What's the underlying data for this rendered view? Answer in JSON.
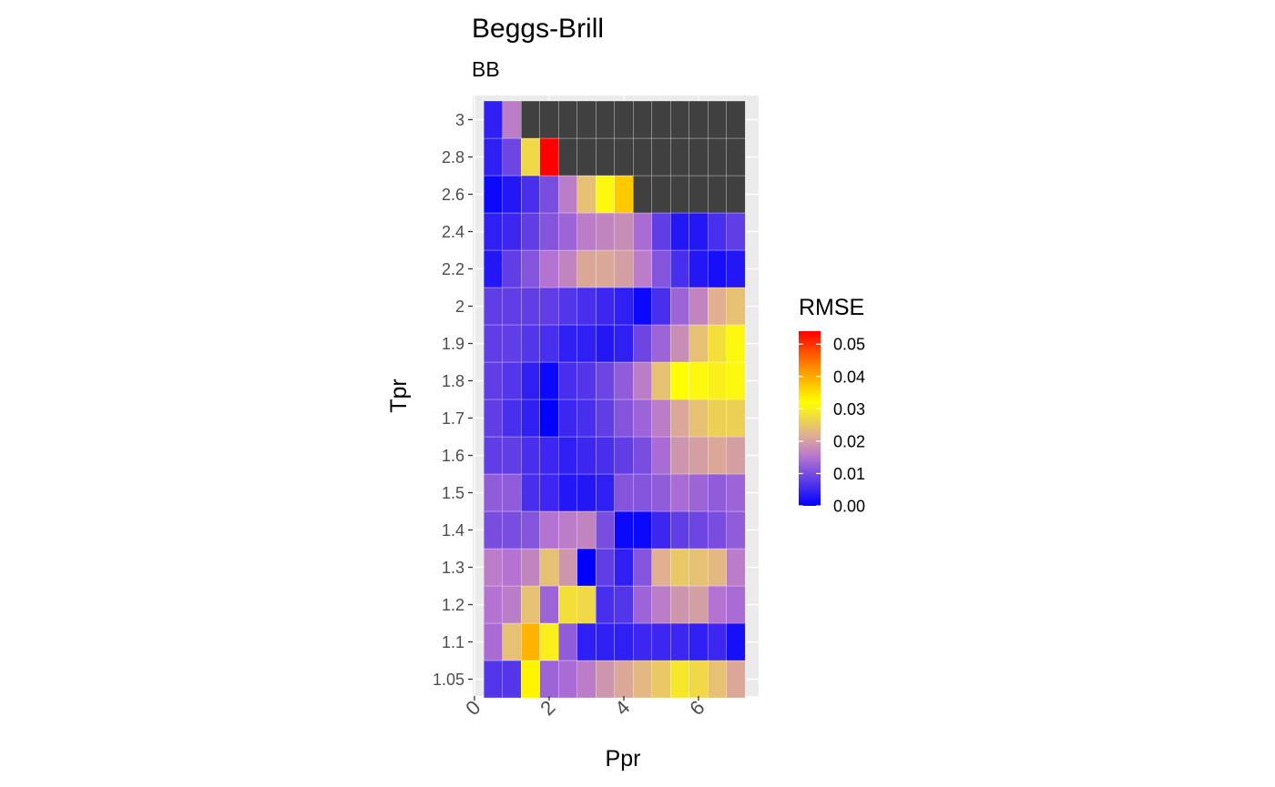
{
  "chart_data": {
    "type": "heatmap",
    "title": "Beggs-Brill",
    "subtitle": "BB",
    "xlabel": "Ppr",
    "ylabel": "Tpr",
    "x_ticks": [
      0,
      2,
      4,
      6
    ],
    "x": [
      0.5,
      1.0,
      1.5,
      2.0,
      2.5,
      3.0,
      3.5,
      4.0,
      4.5,
      5.0,
      5.5,
      6.0,
      6.5,
      7.0
    ],
    "y_categories": [
      "1.05",
      "1.1",
      "1.2",
      "1.3",
      "1.4",
      "1.5",
      "1.6",
      "1.7",
      "1.8",
      "1.9",
      "2",
      "2.2",
      "2.4",
      "2.6",
      "2.8",
      "3"
    ],
    "z": [
      [
        0.007,
        0.007,
        0.033,
        0.013,
        0.014,
        0.016,
        0.019,
        0.021,
        0.023,
        0.025,
        0.029,
        0.027,
        0.024,
        0.021
      ],
      [
        0.014,
        0.024,
        0.039,
        0.03,
        0.012,
        0.004,
        0.004,
        0.004,
        0.005,
        0.005,
        0.005,
        0.004,
        0.005,
        0.002
      ],
      [
        0.015,
        0.016,
        0.024,
        0.013,
        0.028,
        0.027,
        0.006,
        0.007,
        0.013,
        0.016,
        0.019,
        0.02,
        0.015,
        0.014
      ],
      [
        0.016,
        0.015,
        0.017,
        0.024,
        0.019,
        0.0,
        0.008,
        0.004,
        0.011,
        0.022,
        0.025,
        0.024,
        0.023,
        0.016
      ],
      [
        0.01,
        0.01,
        0.011,
        0.015,
        0.016,
        0.017,
        0.01,
        0.001,
        0.001,
        0.005,
        0.008,
        0.009,
        0.01,
        0.012
      ],
      [
        0.012,
        0.012,
        0.006,
        0.005,
        0.003,
        0.003,
        0.004,
        0.011,
        0.011,
        0.012,
        0.014,
        0.013,
        0.012,
        0.013
      ],
      [
        0.008,
        0.008,
        0.006,
        0.005,
        0.004,
        0.005,
        0.006,
        0.008,
        0.01,
        0.014,
        0.019,
        0.02,
        0.021,
        0.02
      ],
      [
        0.008,
        0.006,
        0.004,
        0.0,
        0.005,
        0.006,
        0.008,
        0.011,
        0.013,
        0.016,
        0.021,
        0.024,
        0.026,
        0.026
      ],
      [
        0.008,
        0.007,
        0.004,
        0.001,
        0.006,
        0.007,
        0.009,
        0.012,
        0.016,
        0.024,
        0.032,
        0.031,
        0.03,
        0.031
      ],
      [
        0.008,
        0.008,
        0.007,
        0.006,
        0.004,
        0.004,
        0.003,
        0.004,
        0.009,
        0.013,
        0.018,
        0.024,
        0.028,
        0.031
      ],
      [
        0.008,
        0.008,
        0.008,
        0.008,
        0.007,
        0.006,
        0.005,
        0.004,
        0.001,
        0.006,
        0.013,
        0.017,
        0.022,
        0.024
      ],
      [
        0.003,
        0.008,
        0.011,
        0.015,
        0.017,
        0.021,
        0.021,
        0.02,
        0.016,
        0.011,
        0.006,
        0.003,
        0.002,
        0.003
      ],
      [
        0.004,
        0.005,
        0.008,
        0.011,
        0.013,
        0.016,
        0.017,
        0.018,
        0.014,
        0.008,
        0.003,
        0.003,
        0.006,
        0.008
      ],
      [
        0.001,
        0.003,
        0.006,
        0.01,
        0.016,
        0.024,
        0.031,
        0.037,
        null,
        null,
        null,
        null,
        null,
        null
      ],
      [
        0.004,
        0.009,
        0.027,
        0.054,
        null,
        null,
        null,
        null,
        null,
        null,
        null,
        null,
        null,
        null
      ],
      [
        0.004,
        0.016,
        null,
        null,
        null,
        null,
        null,
        null,
        null,
        null,
        null,
        null,
        null,
        null
      ]
    ],
    "na_color": "#404040",
    "legend": {
      "title": "RMSE",
      "ticks": [
        "0.00",
        "0.01",
        "0.02",
        "0.03",
        "0.04",
        "0.05"
      ],
      "tick_values": [
        0.0,
        0.01,
        0.02,
        0.03,
        0.04,
        0.05
      ],
      "zmin": 0.0,
      "zmax": 0.054,
      "stops": [
        {
          "v": 0.0,
          "color": "#0000ff"
        },
        {
          "v": 0.015,
          "color": "#b573d1"
        },
        {
          "v": 0.022,
          "color": "#e0b090"
        },
        {
          "v": 0.032,
          "color": "#ffff00"
        },
        {
          "v": 0.042,
          "color": "#ff9500"
        },
        {
          "v": 0.054,
          "color": "#ff0000"
        }
      ]
    },
    "xlim": [
      0,
      7.25
    ],
    "panel_background": "#ebebeb",
    "grid": true,
    "legend_position": "right"
  }
}
